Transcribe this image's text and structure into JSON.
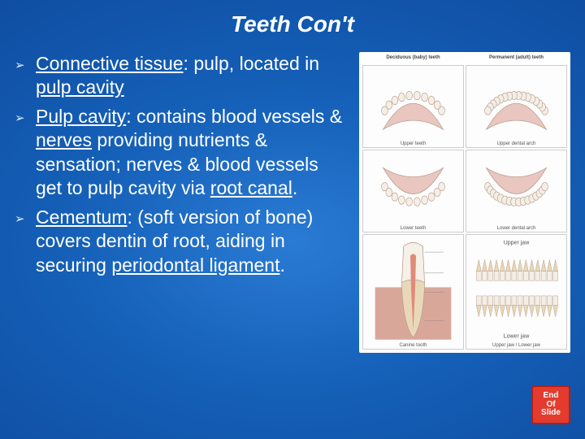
{
  "title": "Teeth Con't",
  "bullets": [
    {
      "runs": [
        {
          "t": "Connective tissue",
          "u": true
        },
        {
          "t": ": pulp, located in "
        },
        {
          "t": "pulp cavity",
          "u": true
        }
      ]
    },
    {
      "runs": [
        {
          "t": "Pulp cavity",
          "u": true
        },
        {
          "t": ": contains blood vessels & "
        },
        {
          "t": "nerves",
          "u": true
        },
        {
          "t": " providing nutrients & sensation; nerves & blood vessels get to pulp cavity via "
        },
        {
          "t": "root canal",
          "u": true
        },
        {
          "t": "."
        }
      ]
    },
    {
      "runs": [
        {
          "t": "Cementum",
          "u": true
        },
        {
          "t": ": (soft version of bone) covers dentin of root, aiding in securing "
        },
        {
          "t": "periodontal ligament",
          "u": true
        },
        {
          "t": "."
        }
      ]
    }
  ],
  "figure": {
    "col_left_heading": "Deciduous (baby) teeth",
    "col_right_heading": "Permanent (adult) teeth",
    "arches": [
      {
        "caption": "Upper teeth"
      },
      {
        "caption": "Upper dental arch"
      },
      {
        "caption": "Lower teeth"
      },
      {
        "caption": "Lower dental arch"
      }
    ],
    "tooth_caption": "Canine tooth",
    "jaw_caption": "Upper jaw / Lower jaw"
  },
  "badge": {
    "l1": "End",
    "l2": "Of",
    "l3": "Slide"
  },
  "colors": {
    "palate": "#e9c7c0",
    "tooth": "#f4efe6",
    "outline": "#b89a8a",
    "enamel": "#f5f0e8",
    "dentin": "#e8d8b8",
    "pulp": "#e08a7a",
    "gum": "#d9a79a"
  }
}
